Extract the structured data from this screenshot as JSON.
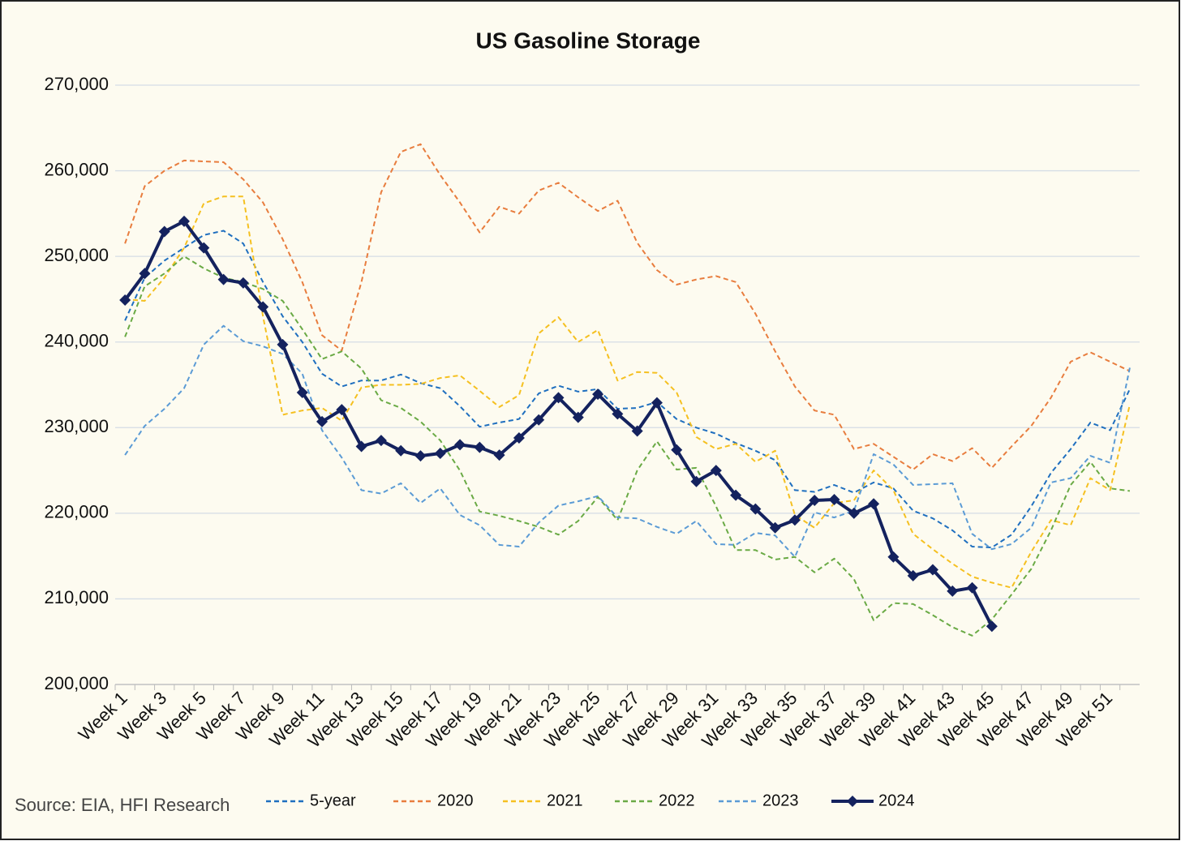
{
  "chart_data": {
    "type": "line",
    "title": "US Gasoline Storage",
    "source": "Source: EIA, HFI Research",
    "categories": [
      "Week 1",
      null,
      "Week 3",
      null,
      "Week 5",
      null,
      "Week 7",
      null,
      "Week 9",
      null,
      "Week 11",
      null,
      "Week 13",
      null,
      "Week 15",
      null,
      "Week 17",
      null,
      "Week 19",
      null,
      "Week 21",
      null,
      "Week 23",
      null,
      "Week 25",
      null,
      "Week 27",
      null,
      "Week 29",
      null,
      "Week 31",
      null,
      "Week 33",
      null,
      "Week 35",
      null,
      "Week 37",
      null,
      "Week 39",
      null,
      "Week 41",
      null,
      "Week 43",
      null,
      "Week 45",
      null,
      "Week 47",
      null,
      "Week 49",
      null,
      "Week 51",
      null
    ],
    "ylim": [
      200000,
      270000
    ],
    "yticks": [
      {
        "value": 200000,
        "label": "200,000"
      },
      {
        "value": 210000,
        "label": "210,000"
      },
      {
        "value": 220000,
        "label": "220,000"
      },
      {
        "value": 230000,
        "label": "230,000"
      },
      {
        "value": 240000,
        "label": "240,000"
      },
      {
        "value": 250000,
        "label": "250,000"
      },
      {
        "value": 260000,
        "label": "260,000"
      },
      {
        "value": 270000,
        "label": "270,000"
      }
    ],
    "grid": true,
    "legend": "bottom",
    "series": [
      {
        "name": "5-year",
        "color": "#1f6fbf",
        "dashed": true,
        "values": [
          242500,
          247500,
          249500,
          251000,
          252500,
          253000,
          251500,
          247000,
          243000,
          240000,
          236300,
          234800,
          235500,
          235500,
          236200,
          235200,
          234600,
          232500,
          230100,
          230600,
          231000,
          234000,
          234900,
          234200,
          234500,
          232200,
          232300,
          233000,
          231000,
          230000,
          229300,
          228200,
          227300,
          226200,
          222700,
          222500,
          223300,
          222400,
          223600,
          222900,
          220300,
          219400,
          218000,
          216100,
          216000,
          217500,
          220800,
          224700,
          227500,
          230600,
          229700,
          234500
        ]
      },
      {
        "name": "2020",
        "color": "#e87d3e",
        "dashed": true,
        "values": [
          251500,
          258200,
          260000,
          261200,
          261100,
          261000,
          259000,
          256300,
          252000,
          247000,
          240800,
          239000,
          247000,
          257500,
          262200,
          263100,
          259500,
          256300,
          252800,
          255800,
          255000,
          257700,
          258600,
          256900,
          255300,
          256500,
          251600,
          248400,
          246700,
          247300,
          247700,
          247000,
          243300,
          238900,
          234800,
          232000,
          231500,
          227500,
          228100,
          226600,
          225100,
          226900,
          226100,
          227600,
          225300,
          227800,
          230200,
          233500,
          237700,
          238800,
          237700,
          236600
        ]
      },
      {
        "name": "2021",
        "color": "#f5c020",
        "dashed": true,
        "values": [
          245000,
          244800,
          247500,
          251000,
          256200,
          257000,
          257000,
          243000,
          231500,
          232000,
          232300,
          230800,
          234700,
          235000,
          235000,
          235100,
          235800,
          236100,
          234300,
          232400,
          233800,
          241000,
          242900,
          240000,
          241400,
          235500,
          236500,
          236400,
          234100,
          228900,
          227500,
          228100,
          226000,
          227300,
          219800,
          218300,
          221200,
          221500,
          225000,
          222700,
          217600,
          215800,
          214100,
          212600,
          211900,
          211300,
          215500,
          219200,
          218600,
          224100,
          222700,
          232700
        ]
      },
      {
        "name": "2022",
        "color": "#6aaa45",
        "dashed": true,
        "values": [
          240600,
          246500,
          248000,
          250000,
          248600,
          247500,
          247000,
          246200,
          244800,
          241500,
          238000,
          238900,
          236900,
          233200,
          232300,
          230700,
          228500,
          225000,
          220200,
          219700,
          219100,
          218400,
          217500,
          219100,
          221900,
          219200,
          225000,
          228400,
          225100,
          225300,
          220800,
          215700,
          215700,
          214600,
          214900,
          213100,
          214700,
          212300,
          207500,
          209500,
          209400,
          208100,
          206700,
          205700,
          207600,
          210500,
          213500,
          218000,
          223300,
          226000,
          222900,
          222600
        ]
      },
      {
        "name": "2023",
        "color": "#5b9bd5",
        "dashed": true,
        "values": [
          226800,
          230200,
          232200,
          234600,
          239700,
          241900,
          240100,
          239500,
          238600,
          236300,
          229700,
          226500,
          222700,
          222300,
          223500,
          221200,
          222900,
          219800,
          218600,
          216300,
          216100,
          218900,
          220900,
          221400,
          222000,
          219500,
          219400,
          218400,
          217600,
          219100,
          216400,
          216300,
          217700,
          217400,
          214900,
          220100,
          219500,
          220300,
          226900,
          225700,
          223300,
          223400,
          223500,
          217600,
          215800,
          216400,
          218300,
          223600,
          224100,
          226700,
          225900,
          237000
        ]
      },
      {
        "name": "2024",
        "color": "#14225e",
        "dashed": false,
        "marker": "diamond",
        "values": [
          244900,
          248000,
          252900,
          254100,
          251000,
          247300,
          246900,
          244100,
          239700,
          234100,
          230700,
          232100,
          227800,
          228500,
          227300,
          226700,
          227000,
          228000,
          227700,
          226800,
          228800,
          230900,
          233500,
          231200,
          233900,
          231600,
          229600,
          232900,
          227400,
          223700,
          225000,
          222100,
          220500,
          218300,
          219200,
          221500,
          221600,
          220000,
          221100,
          214900,
          212700,
          213400,
          210900,
          211300,
          206800,
          null,
          null,
          null,
          null,
          null,
          null,
          null
        ]
      }
    ]
  }
}
